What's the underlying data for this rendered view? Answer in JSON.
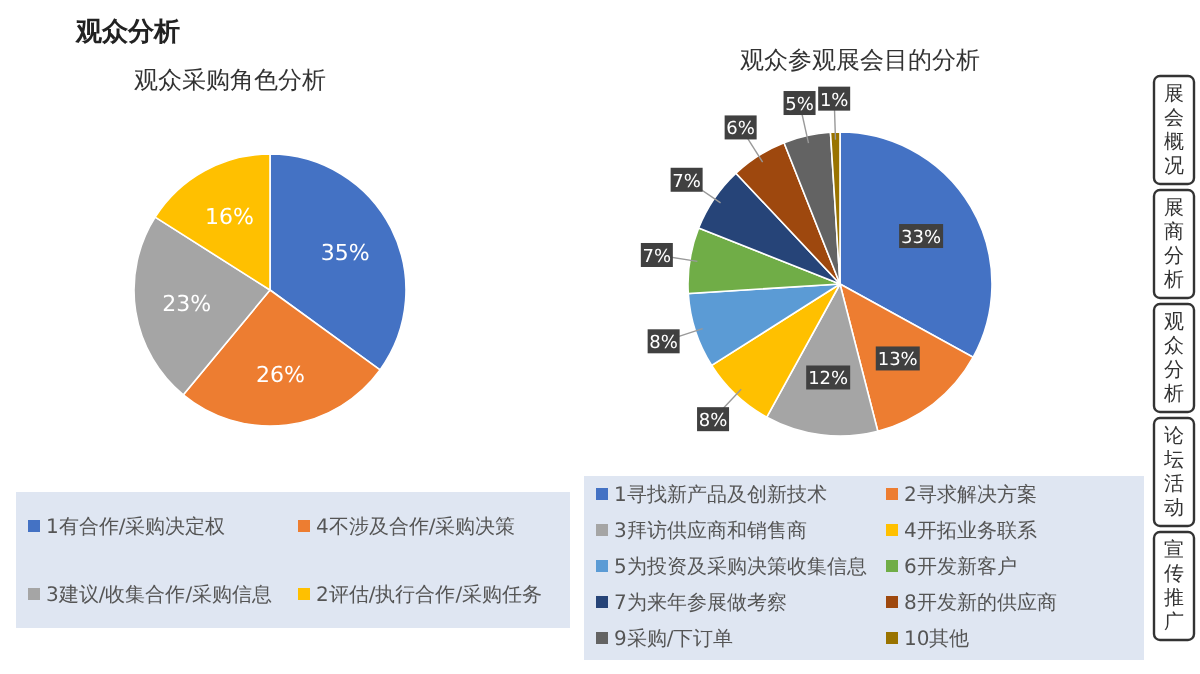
{
  "chart_data": [
    {
      "type": "pie",
      "title": "观众采购角色分析",
      "annotations": [
        "观众分析"
      ],
      "legend": "bottom",
      "categories": [
        "1有合作/采购决定权",
        "4不涉及合作/采购决策",
        "3建议/收集合作/采购信息",
        "2评估/执行合作/采购任务"
      ],
      "values": [
        35,
        26,
        23,
        16
      ],
      "value_labels": [
        "35%",
        "26%",
        "23%",
        "16%"
      ],
      "colors": [
        "#4472c4",
        "#ed7d31",
        "#a5a5a5",
        "#ffc000"
      ]
    },
    {
      "type": "pie",
      "title": "观众参观展会目的分析",
      "legend": "bottom",
      "categories": [
        "1寻找新产品及创新技术",
        "2寻求解决方案",
        "3拜访供应商和销售商",
        "4开拓业务联系",
        "5为投资及采购决策收集信息",
        "6开发新客户",
        "7为来年参展做考察",
        "8开发新的供应商",
        "9采购/下订单",
        "10其他"
      ],
      "values": [
        33,
        13,
        12,
        8,
        8,
        7,
        7,
        6,
        5,
        1
      ],
      "value_labels": [
        "33%",
        "13%",
        "12%",
        "8%",
        "8%",
        "7%",
        "7%",
        "6%",
        "5%",
        "1%"
      ],
      "colors": [
        "#4472c4",
        "#ed7d31",
        "#a5a5a5",
        "#ffc000",
        "#5b9bd5",
        "#70ad47",
        "#264478",
        "#9e480e",
        "#636363",
        "#997300"
      ]
    },
    {
      "type": "other",
      "annotations": [
        "展会概况",
        "展商分析",
        "观众分析",
        "论坛活动",
        "宣传推广"
      ]
    }
  ]
}
